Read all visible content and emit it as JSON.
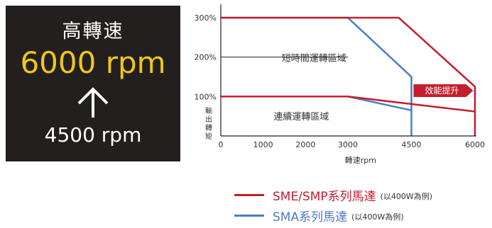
{
  "promo": {
    "title": "高轉速",
    "high_speed": "6000 rpm",
    "low_speed": "4500 rpm",
    "arrow_icon": "up-arrow-icon"
  },
  "chart_data": {
    "type": "line",
    "xlabel": "轉速rpm",
    "ylabel": "輸出轉矩",
    "xticks": [
      0,
      1000,
      2000,
      3000,
      4500,
      6000
    ],
    "xtick_labels": [
      "0",
      "1000",
      "2000",
      "3000",
      "4500",
      "6000"
    ],
    "yticks": [
      100,
      200,
      300
    ],
    "ytick_labels": [
      "100%",
      "200%",
      "300%"
    ],
    "xlim": [
      0,
      6000
    ],
    "ylim": [
      0,
      300
    ],
    "region_labels": {
      "short_time": "短時間運轉區域",
      "continuous": "連續運轉區域"
    },
    "callout": "效能提升",
    "series": [
      {
        "name": "SME/SMP系列馬達",
        "note": "(以400W為例)",
        "color": "#c41e2d",
        "outline": [
          [
            0,
            300
          ],
          [
            4200,
            300
          ],
          [
            6000,
            125
          ],
          [
            6000,
            0
          ]
        ],
        "continuous": [
          [
            0,
            100
          ],
          [
            3000,
            100
          ],
          [
            6000,
            62
          ]
        ]
      },
      {
        "name": "SMA系列馬達",
        "note": "(以400W為例)",
        "color": "#4a7bc8",
        "outline": [
          [
            0,
            300
          ],
          [
            3000,
            300
          ],
          [
            4500,
            150
          ],
          [
            4500,
            0
          ]
        ],
        "continuous": [
          [
            0,
            100
          ],
          [
            3000,
            100
          ],
          [
            4500,
            65
          ]
        ]
      }
    ]
  }
}
